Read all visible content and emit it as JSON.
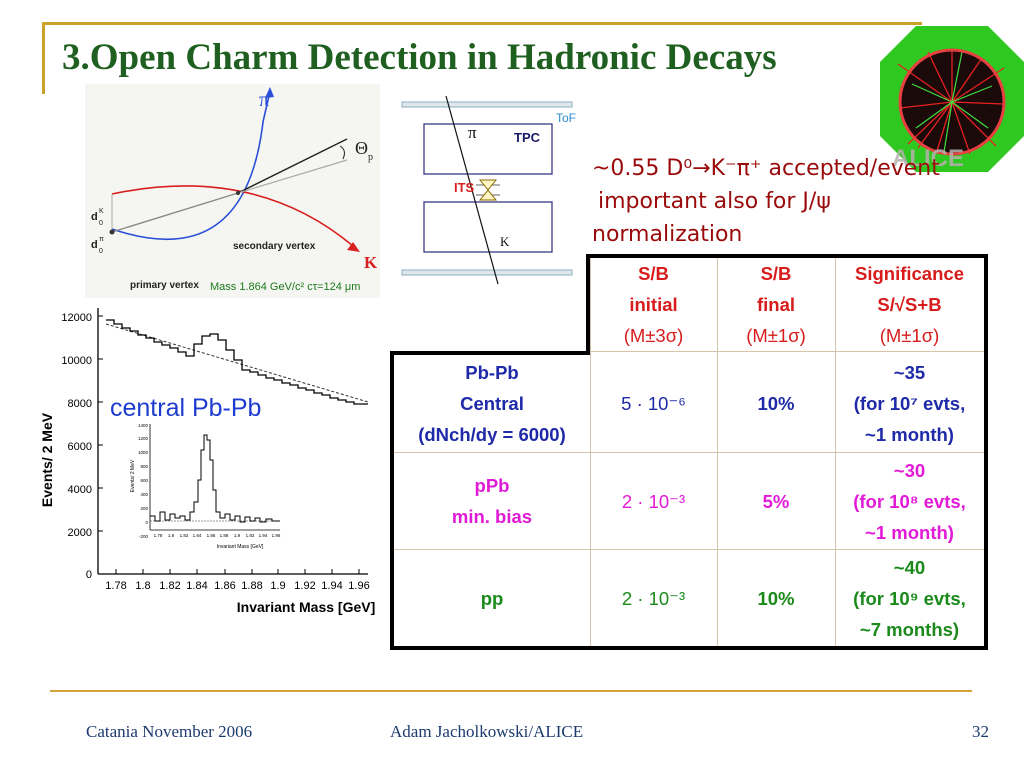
{
  "title": "3.Open Charm Detection in Hadronic Decays",
  "decay_sketch": {
    "pi": "π",
    "theta": "Θ",
    "theta_sub": "p",
    "d0k": "d",
    "d0k_sup": "K",
    "d0k_sub": "0",
    "d0pi": "d",
    "d0pi_sup": "π",
    "d0pi_sub": "0",
    "secondary": "secondary vertex",
    "primary": "primary vertex",
    "k": "K",
    "mass": "Mass 1.864 GeV/c² cτ=124 μm"
  },
  "detector": {
    "tof": "ToF",
    "tpc": "TPC",
    "its": "ITS",
    "pi": "π",
    "k": "K"
  },
  "note": {
    "line1": "~0.55 D⁰→K⁻π⁺ accepted/event",
    "line2": "important also for J/ψ",
    "line3": "normalization"
  },
  "plot": {
    "ylabel": "Events/ 2 MeV",
    "xlabel": "Invariant Mass [GeV]",
    "label": "central Pb-Pb",
    "yticks": [
      "0",
      "2000",
      "4000",
      "6000",
      "8000",
      "10000",
      "12000"
    ],
    "xticks": [
      "1.78",
      "1.8",
      "1.82",
      "1.84",
      "1.86",
      "1.88",
      "1.9",
      "1.92",
      "1.94",
      "1.96"
    ],
    "inset_ylabel": "Events/ 2 MeV",
    "inset_xlabel": "Invariant Mass [GeV]",
    "inset_yticks": [
      "-200",
      "0",
      "200",
      "400",
      "600",
      "800",
      "1000",
      "1200",
      "1400"
    ],
    "inset_xticks": [
      "1.78",
      "1.8",
      "1.82",
      "1.84",
      "1.86",
      "1.88",
      "1.9",
      "1.92",
      "1.94",
      "1.96"
    ]
  },
  "table": {
    "headers": [
      {
        "l1": "S/B",
        "l2": "initial",
        "l3": "(M±3σ)"
      },
      {
        "l1": "S/B",
        "l2": "final",
        "l3": "(M±1σ)"
      },
      {
        "l1": "Significance",
        "l2": "S/√S+B",
        "l3": "(M±1σ)"
      }
    ],
    "rows": [
      {
        "name_l1": "Pb-Pb",
        "name_l2": "Central",
        "name_l3": "(dNch/dy = 6000)",
        "initial": "5 · 10⁻⁶",
        "final": "10%",
        "sig_l1": "~35",
        "sig_l2": "(for 10⁷ evts,",
        "sig_l3": "~1 month)"
      },
      {
        "name_l1": "pPb",
        "name_l2": "min. bias",
        "initial": "2 · 10⁻³",
        "final": "5%",
        "sig_l1": "~30",
        "sig_l2": "(for 10⁸ evts,",
        "sig_l3": "~1 month)"
      },
      {
        "name_l1": "pp",
        "initial": "2 · 10⁻³",
        "final": "10%",
        "sig_l1": "~40",
        "sig_l2": "(for 10⁹ evts,",
        "sig_l3": "~7 months)"
      }
    ]
  },
  "footer": {
    "left": "Catania November 2006",
    "center": "Adam Jacholkowski/ALICE",
    "page": "32"
  },
  "colors": {
    "title": "#1f5f1f",
    "note": "#9a0a0a",
    "table_header": "#d81c1c",
    "pbpb": "#1e2aa8",
    "ppb": "#e21ad8",
    "pp": "#1a8a1a"
  }
}
